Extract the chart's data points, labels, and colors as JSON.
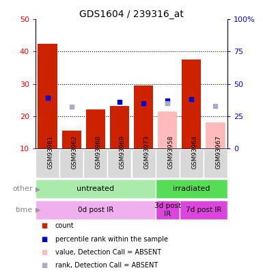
{
  "title": "GDS1604 / 239316_at",
  "samples": [
    "GSM93961",
    "GSM93962",
    "GSM93968",
    "GSM93969",
    "GSM93973",
    "GSM93958",
    "GSM93964",
    "GSM93967"
  ],
  "bar_values": [
    42.5,
    15.5,
    22.0,
    23.0,
    29.5,
    null,
    37.5,
    null
  ],
  "bar_absent_values": [
    null,
    null,
    null,
    null,
    null,
    21.5,
    null,
    18.0
  ],
  "rank_values": [
    39,
    null,
    null,
    36,
    35,
    37,
    38,
    null
  ],
  "rank_absent_values": [
    null,
    32,
    null,
    null,
    null,
    35,
    null,
    33
  ],
  "bar_color": "#cc2200",
  "bar_absent_color": "#ffbbbb",
  "rank_color": "#0000cc",
  "rank_absent_color": "#aaaacc",
  "ylim_left": [
    10,
    50
  ],
  "ylim_right": [
    0,
    100
  ],
  "left_ticks": [
    10,
    20,
    30,
    40,
    50
  ],
  "right_ticks": [
    0,
    25,
    50,
    75,
    100
  ],
  "left_tick_labels": [
    "10",
    "20",
    "30",
    "40",
    "50"
  ],
  "right_tick_labels": [
    "0",
    "25",
    "50",
    "75",
    "100%"
  ],
  "label_bg_color": "#d8d8d8",
  "groups_other": [
    {
      "label": "untreated",
      "start": 0,
      "end": 5,
      "color": "#aaeaaa"
    },
    {
      "label": "irradiated",
      "start": 5,
      "end": 8,
      "color": "#55dd55"
    }
  ],
  "groups_time": [
    {
      "label": "0d post IR",
      "start": 0,
      "end": 5,
      "color": "#f0b0f0"
    },
    {
      "label": "3d post\nIR",
      "start": 5,
      "end": 6,
      "color": "#dd44dd"
    },
    {
      "label": "7d post IR",
      "start": 6,
      "end": 8,
      "color": "#dd44dd"
    }
  ],
  "legend_items": [
    {
      "color": "#cc2200",
      "marker": "s",
      "label": "count"
    },
    {
      "color": "#0000cc",
      "marker": "s",
      "label": "percentile rank within the sample"
    },
    {
      "color": "#ffbbbb",
      "marker": "s",
      "label": "value, Detection Call = ABSENT"
    },
    {
      "color": "#aaaacc",
      "marker": "s",
      "label": "rank, Detection Call = ABSENT"
    }
  ]
}
